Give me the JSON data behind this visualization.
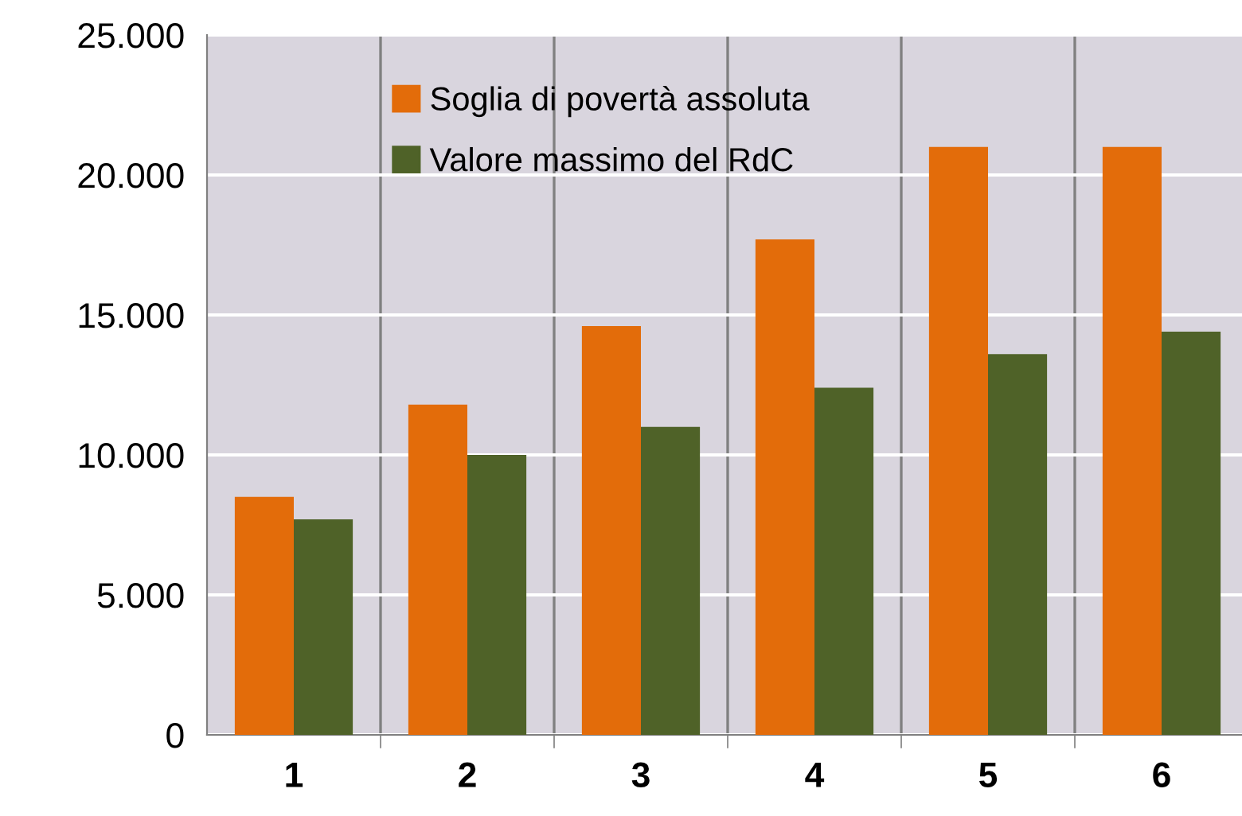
{
  "chart_data": {
    "type": "bar",
    "categories": [
      "1",
      "2",
      "3",
      "4",
      "5",
      "6"
    ],
    "series": [
      {
        "name": "Soglia di povertà assoluta",
        "color": "#e36c0a",
        "values": [
          8500,
          11800,
          14600,
          17700,
          21000,
          21000
        ]
      },
      {
        "name": "Valore massimo del RdC",
        "color": "#4f6228",
        "values": [
          7700,
          10000,
          11000,
          12400,
          13600,
          14400
        ]
      }
    ],
    "ylim": [
      0,
      25000
    ],
    "yticks": [
      {
        "value": 0,
        "label": "0"
      },
      {
        "value": 5000,
        "label": "5.000"
      },
      {
        "value": 10000,
        "label": "10.000"
      },
      {
        "value": 15000,
        "label": "15.000"
      },
      {
        "value": 20000,
        "label": "20.000"
      },
      {
        "value": 25000,
        "label": "25.000"
      }
    ],
    "grid": true,
    "legend": "top"
  }
}
